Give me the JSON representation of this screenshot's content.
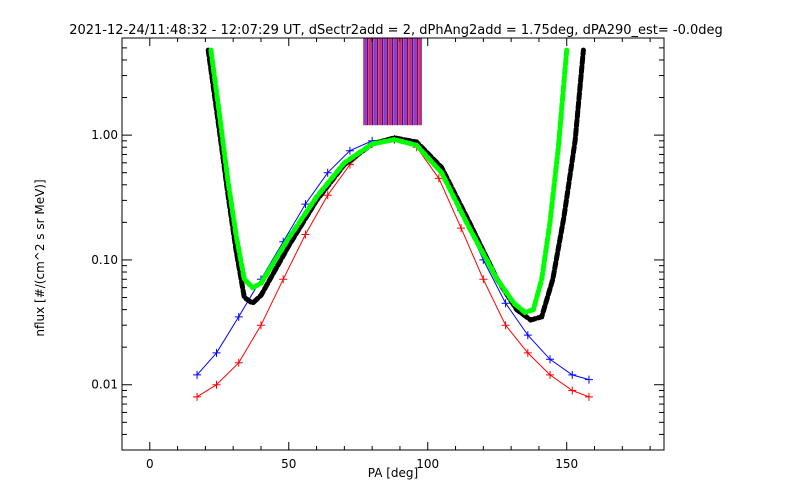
{
  "chart_data": {
    "type": "line",
    "title": "2021-12-24/11:48:32 - 12:07:29 UT, dSectr2add = 2, dPhAng2add = 1.75deg, dPA290_est=  -0.0deg",
    "xlabel": "PA [deg]",
    "ylabel": "nflux [#/(cm^2 s sr MeV)]",
    "xlim": [
      -10,
      185
    ],
    "ylim": [
      0.003,
      6.0
    ],
    "yscale": "log",
    "grid": false,
    "xticks": [
      {
        "value": 0,
        "label": "0"
      },
      {
        "value": 50,
        "label": "50"
      },
      {
        "value": 100,
        "label": "100"
      },
      {
        "value": 150,
        "label": "150"
      }
    ],
    "yticks": [
      {
        "value": 0.01,
        "label": "0.01"
      },
      {
        "value": 0.1,
        "label": "0.10"
      },
      {
        "value": 1.0,
        "label": "1.00"
      }
    ],
    "colors": {
      "red_series": "#ff0000",
      "blue_series": "#0000ff",
      "black_fit": "#000000",
      "green_fit": "#00ff00"
    },
    "series": [
      {
        "color": "red",
        "style": "line+plus",
        "values_x": [
          17,
          24,
          32,
          40,
          48,
          56,
          64,
          72,
          80,
          88,
          96,
          104,
          112,
          120,
          128,
          136,
          144,
          152,
          158
        ],
        "values_y": [
          0.008,
          0.01,
          0.015,
          0.03,
          0.07,
          0.16,
          0.33,
          0.58,
          0.85,
          0.92,
          0.8,
          0.45,
          0.18,
          0.07,
          0.03,
          0.018,
          0.012,
          0.009,
          0.008
        ]
      },
      {
        "color": "blue",
        "style": "line+plus",
        "values_x": [
          17,
          24,
          32,
          40,
          48,
          56,
          64,
          72,
          80,
          88,
          96,
          104,
          112,
          120,
          128,
          136,
          144,
          152,
          158
        ],
        "values_y": [
          0.012,
          0.018,
          0.035,
          0.07,
          0.14,
          0.28,
          0.5,
          0.75,
          0.9,
          0.93,
          0.85,
          0.55,
          0.25,
          0.1,
          0.045,
          0.025,
          0.016,
          0.012,
          0.011
        ]
      },
      {
        "color": "black",
        "style": "thick-dashed",
        "values_x": [
          21,
          25,
          28,
          31,
          34,
          37,
          40,
          50,
          60,
          70,
          80,
          88,
          96,
          105,
          115,
          125,
          132,
          137,
          141,
          145,
          149,
          153,
          156
        ],
        "values_y": [
          4.8,
          1.1,
          0.35,
          0.12,
          0.05,
          0.045,
          0.052,
          0.13,
          0.3,
          0.58,
          0.85,
          0.95,
          0.88,
          0.55,
          0.2,
          0.07,
          0.04,
          0.033,
          0.035,
          0.07,
          0.22,
          0.9,
          4.8
        ]
      },
      {
        "color": "green",
        "style": "thick-dashed",
        "values_x": [
          22,
          25,
          28,
          31,
          34,
          37,
          40,
          50,
          60,
          70,
          80,
          88,
          96,
          105,
          115,
          125,
          131,
          135,
          138,
          141,
          144,
          147,
          150
        ],
        "values_y": [
          4.8,
          1.5,
          0.45,
          0.16,
          0.07,
          0.06,
          0.065,
          0.15,
          0.32,
          0.6,
          0.85,
          0.92,
          0.83,
          0.5,
          0.18,
          0.07,
          0.045,
          0.038,
          0.04,
          0.07,
          0.2,
          0.8,
          4.8
        ]
      }
    ],
    "vertical_bars": {
      "x_range": [
        77,
        98
      ],
      "y_range": [
        1.2,
        6.0
      ],
      "colors": [
        "red",
        "blue"
      ]
    }
  }
}
